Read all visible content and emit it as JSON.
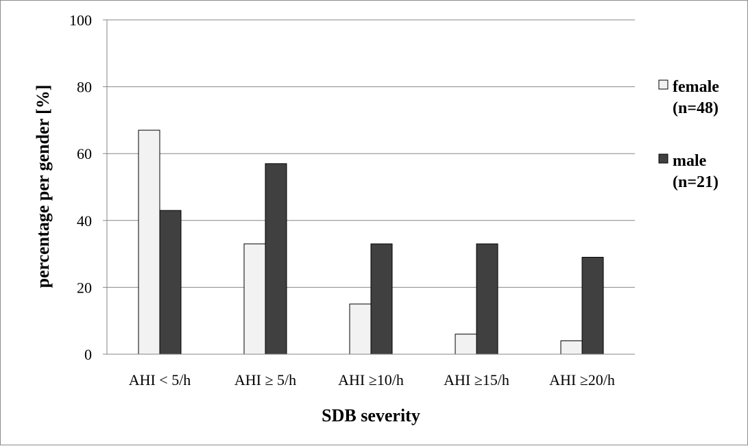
{
  "chart_data": {
    "type": "bar",
    "categories": [
      "AHI < 5/h",
      "AHI ≥ 5/h",
      "AHI ≥10/h",
      "AHI ≥15/h",
      "AHI ≥20/h"
    ],
    "series": [
      {
        "name": [
          "female",
          "(n=48)"
        ],
        "values": [
          67,
          33,
          15,
          6,
          4
        ],
        "color": "#f2f2f2"
      },
      {
        "name": [
          "male",
          "(n=21)"
        ],
        "values": [
          43,
          57,
          33,
          33,
          29
        ],
        "color": "#404040"
      }
    ],
    "xlabel": "SDB severity",
    "ylabel": "percentage per gender [%]",
    "ylim": [
      0,
      100
    ],
    "yticks": [
      0,
      20,
      40,
      60,
      80,
      100
    ],
    "grid": true,
    "legend_position": "right"
  }
}
